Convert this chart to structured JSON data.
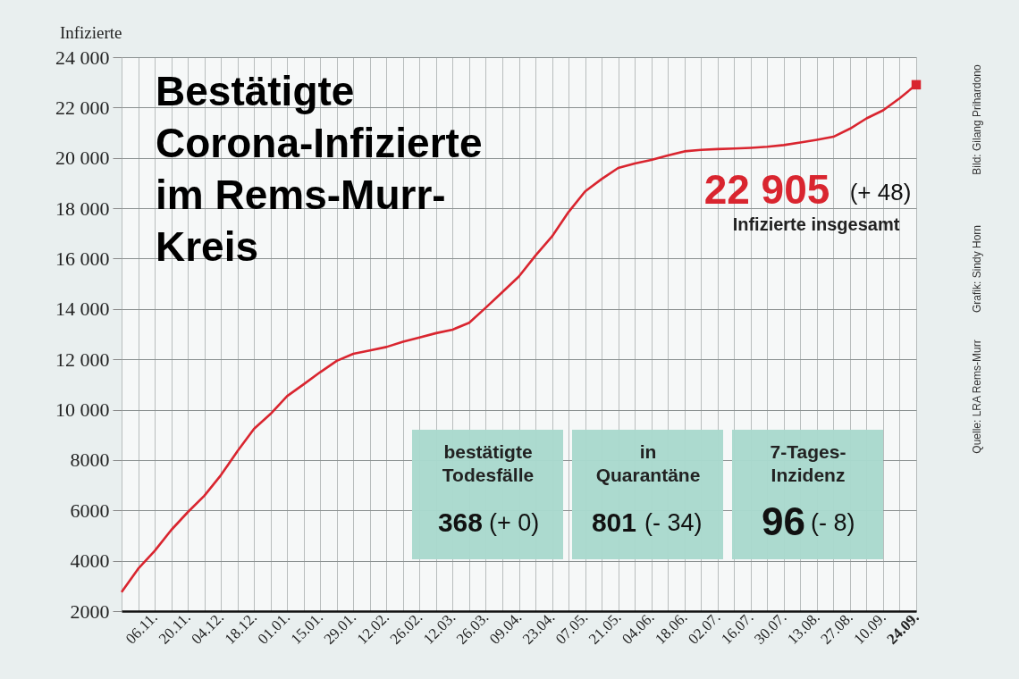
{
  "chart_data": {
    "type": "line",
    "title": "Bestätigte Corona-Infizierte im Rems-Murr-Kreis",
    "ylabel": "Infizierte",
    "categories": [
      null,
      null,
      "06.11.",
      null,
      "20.11.",
      null,
      "04.12.",
      null,
      "18.12.",
      null,
      "01.01.",
      null,
      "15.01.",
      null,
      "29.01.",
      null,
      "12.02.",
      null,
      "26.02.",
      null,
      "12.03.",
      null,
      "26.03.",
      null,
      "09.04.",
      null,
      "23.04.",
      null,
      "07.05.",
      null,
      "21.05.",
      null,
      "04.06.",
      null,
      "18.06.",
      null,
      "02.07.",
      null,
      "16.07.",
      null,
      "30.07.",
      null,
      "13.08.",
      null,
      "27.08.",
      null,
      "10.09.",
      null,
      "24.09."
    ],
    "series": [
      {
        "type": "line",
        "color": "#d9252f",
        "marker": "none",
        "values": [
          2750,
          3680,
          4390,
          5220,
          5930,
          6580,
          7400,
          8350,
          9240,
          9830,
          10540,
          11010,
          11490,
          11940,
          12220,
          12350,
          12490,
          12700,
          12870,
          13040,
          13180,
          13450,
          14050,
          14670,
          15290,
          16120,
          16880,
          17850,
          18670,
          19160,
          19600,
          19780,
          19920,
          20100,
          20260,
          20320,
          20350,
          20370,
          20400,
          20440,
          20510,
          20610,
          20720,
          20840,
          21160,
          21570,
          21890,
          22370,
          22905
        ]
      },
      {
        "type": "scatter",
        "color": "#d9252f",
        "marker": "square",
        "x": [
          "24.09."
        ],
        "values": [
          22905
        ]
      }
    ],
    "ylim": [
      2000,
      24000
    ],
    "yticks": [
      2000,
      4000,
      6000,
      8000,
      {
        "value": 10000,
        "label": "10 000"
      },
      {
        "value": 12000,
        "label": "12 000"
      },
      {
        "value": 14000,
        "label": "14 000"
      },
      {
        "value": 16000,
        "label": "16 000"
      },
      {
        "value": 18000,
        "label": "18 000"
      },
      {
        "value": 20000,
        "label": "20 000"
      },
      {
        "value": 22000,
        "label": "22 000"
      },
      {
        "value": 24000,
        "label": "24 000"
      }
    ],
    "grid": true,
    "annotations": [
      "22 905",
      "(+ 48)",
      "Infizierte insgesamt",
      "bestätigte Todesfälle",
      "368",
      "(+ 0)",
      "in Quarantäne",
      "801",
      "(- 34)",
      "7-Tages-Inzidenz",
      "96",
      "(- 8)",
      "Quelle: LRA Rems-Murr",
      "Grafik: Sindy Horn",
      "Bild: Gilang Prihardono"
    ]
  }
}
